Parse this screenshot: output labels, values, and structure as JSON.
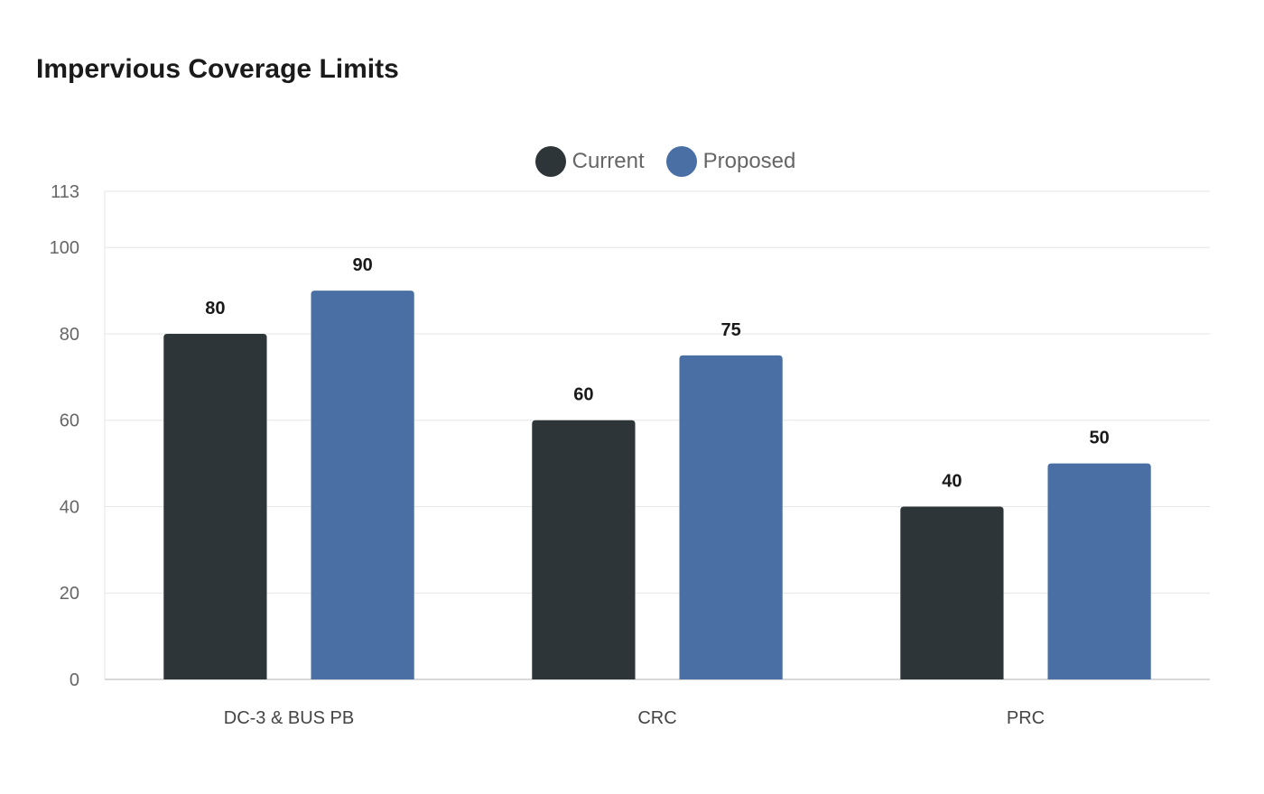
{
  "chart_data": {
    "type": "bar",
    "title": "Impervious Coverage Limits",
    "xlabel": "",
    "ylabel": "",
    "categories": [
      "DC-3 & BUS PB",
      "CRC",
      "PRC"
    ],
    "series": [
      {
        "name": "Current",
        "values": [
          80,
          60,
          40
        ],
        "color": "#2e3538"
      },
      {
        "name": "Proposed",
        "values": [
          90,
          75,
          50
        ],
        "color": "#4a6fa5"
      }
    ],
    "ylim": [
      0,
      113
    ],
    "yticks": [
      0,
      20,
      40,
      60,
      80,
      100,
      113
    ],
    "grid": true,
    "legend_position": "top-center",
    "data_labels": true
  }
}
